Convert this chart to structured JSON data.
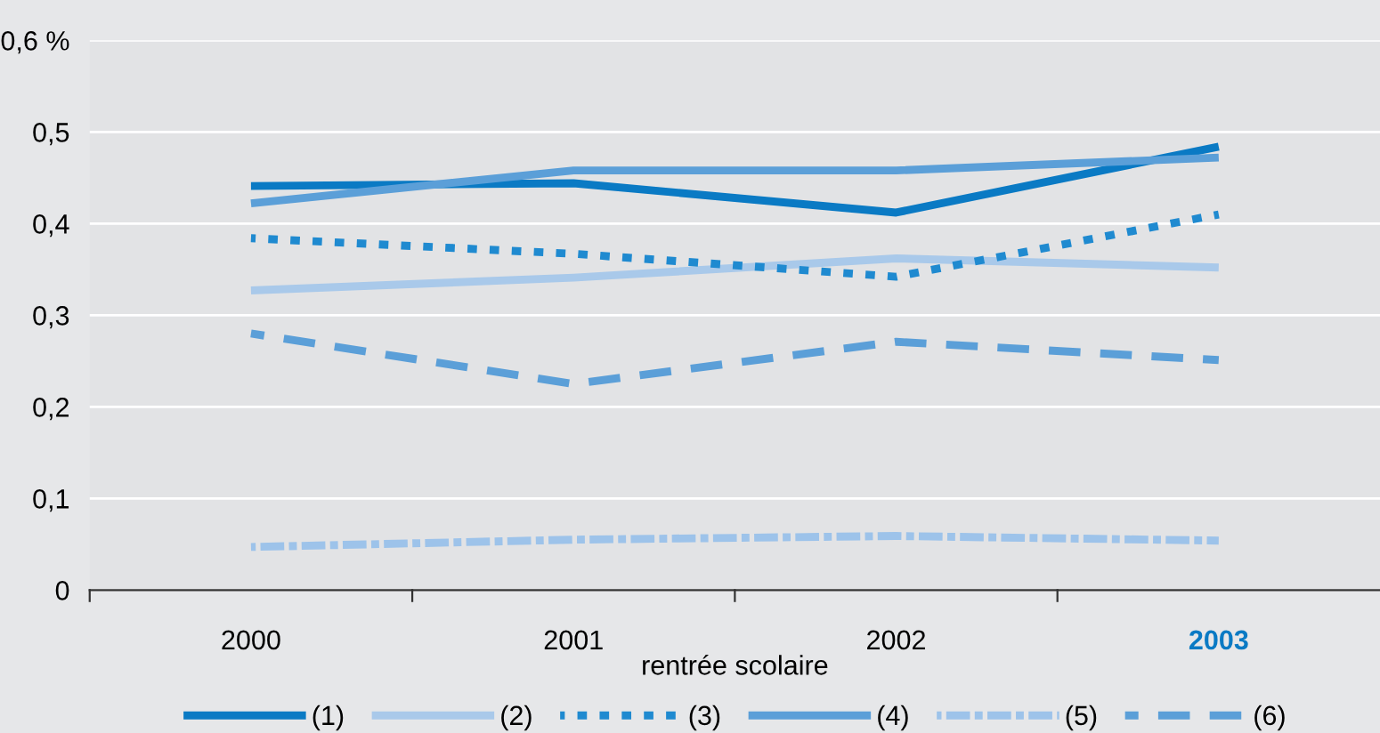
{
  "chart_data": {
    "type": "line",
    "xlabel": "rentrée scolaire",
    "categories": [
      "2000",
      "2001",
      "2002",
      "2003"
    ],
    "ylim": [
      0,
      0.6
    ],
    "yticks": [
      {
        "value": 0,
        "label": "0"
      },
      {
        "value": 0.1,
        "label": "0,1"
      },
      {
        "value": 0.2,
        "label": "0,2"
      },
      {
        "value": 0.3,
        "label": "0,3"
      },
      {
        "value": 0.4,
        "label": "0,4"
      },
      {
        "value": 0.5,
        "label": "0,5"
      },
      {
        "value": 0.6,
        "label": "0,6 %"
      }
    ],
    "grid": "y",
    "legend": "bottom",
    "marker": "none",
    "series": [
      {
        "name": "(1)",
        "color": "#0a7ac4",
        "line_style": "solid",
        "values": [
          0.441,
          0.444,
          0.412,
          0.484
        ]
      },
      {
        "name": "(2)",
        "color": "#a9c9ea",
        "line_style": "solid",
        "values": [
          0.327,
          0.341,
          0.362,
          0.352
        ]
      },
      {
        "name": "(3)",
        "color": "#1f8ad0",
        "line_style": "dotted",
        "values": [
          0.384,
          0.367,
          0.342,
          0.41
        ]
      },
      {
        "name": "(4)",
        "color": "#5b9fd8",
        "line_style": "solid",
        "values": [
          0.422,
          0.458,
          0.458,
          0.472
        ]
      },
      {
        "name": "(5)",
        "color": "#9dc3ea",
        "line_style": "dashdot",
        "values": [
          0.047,
          0.055,
          0.059,
          0.054
        ]
      },
      {
        "name": "(6)",
        "color": "#5b9fd8",
        "line_style": "dashed",
        "values": [
          0.28,
          0.225,
          0.271,
          0.251
        ]
      }
    ]
  }
}
